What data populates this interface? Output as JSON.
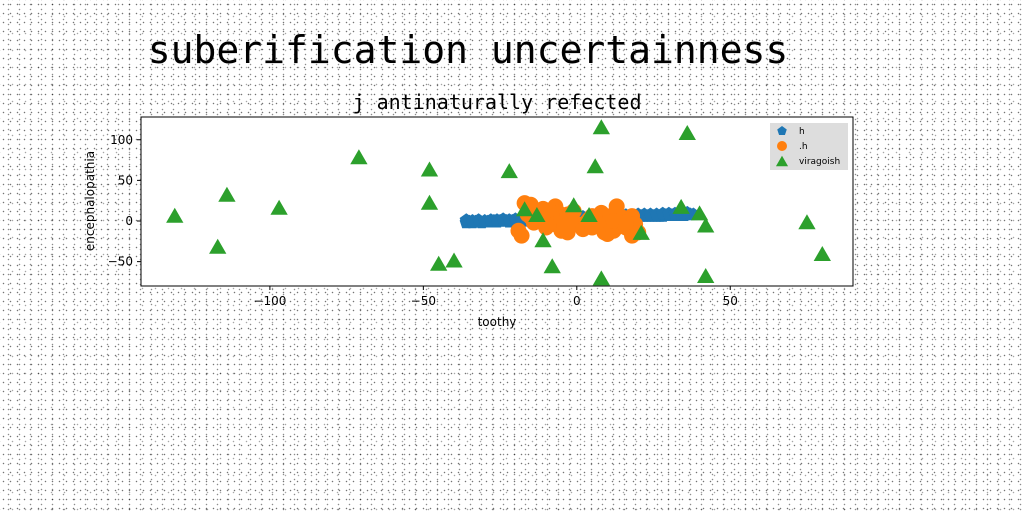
{
  "chart_data": {
    "type": "scatter",
    "suptitle": "suberification uncertainness",
    "title": "j antinaturally refected",
    "xlabel": "toothy",
    "ylabel": "encephalopathia",
    "xlim": [
      -142,
      90
    ],
    "ylim": [
      -80,
      128
    ],
    "xticks": [
      -100,
      -50,
      0,
      50
    ],
    "yticks": [
      -50,
      0,
      50,
      100
    ],
    "tick_labels_x": [
      "−100",
      "−50",
      "0",
      "50"
    ],
    "tick_labels_y": [
      "−50",
      "0",
      "50",
      "100"
    ],
    "legend_position": "top-right",
    "series": [
      {
        "name": "h",
        "marker": "pentagon",
        "color": "#1f77b4",
        "points": [
          [
            -36,
            -2
          ],
          [
            -35,
            -1
          ],
          [
            -34,
            -2
          ],
          [
            -33,
            -1
          ],
          [
            -32,
            -1
          ],
          [
            -31,
            -2
          ],
          [
            -30,
            -1
          ],
          [
            -29,
            -1
          ],
          [
            -28,
            -1
          ],
          [
            -27,
            0
          ],
          [
            -26,
            -1
          ],
          [
            -25,
            0
          ],
          [
            -24,
            0
          ],
          [
            -23,
            0
          ],
          [
            -22,
            -1
          ],
          [
            -21,
            0
          ],
          [
            -20,
            0
          ],
          [
            -19,
            0
          ],
          [
            -18,
            0
          ],
          [
            -17,
            1
          ],
          [
            -16,
            0
          ],
          [
            -15,
            1
          ],
          [
            -14,
            1
          ],
          [
            -13,
            0
          ],
          [
            -12,
            1
          ],
          [
            -11,
            1
          ],
          [
            -10,
            1
          ],
          [
            -9,
            1
          ],
          [
            -8,
            2
          ],
          [
            -7,
            1
          ],
          [
            -6,
            2
          ],
          [
            -5,
            2
          ],
          [
            -4,
            2
          ],
          [
            -3,
            2
          ],
          [
            -2,
            2
          ],
          [
            -1,
            3
          ],
          [
            0,
            3
          ],
          [
            1,
            3
          ],
          [
            2,
            3
          ],
          [
            3,
            3
          ],
          [
            4,
            3
          ],
          [
            5,
            3
          ],
          [
            6,
            3
          ],
          [
            7,
            4
          ],
          [
            8,
            4
          ],
          [
            9,
            4
          ],
          [
            10,
            4
          ],
          [
            11,
            4
          ],
          [
            12,
            4
          ],
          [
            13,
            4
          ],
          [
            14,
            5
          ],
          [
            15,
            5
          ],
          [
            16,
            5
          ],
          [
            17,
            5
          ],
          [
            18,
            5
          ],
          [
            19,
            5
          ],
          [
            20,
            5
          ],
          [
            21,
            6
          ],
          [
            22,
            6
          ],
          [
            23,
            6
          ],
          [
            24,
            6
          ],
          [
            25,
            6
          ],
          [
            26,
            6
          ],
          [
            27,
            6
          ],
          [
            28,
            6
          ],
          [
            29,
            7
          ],
          [
            30,
            7
          ],
          [
            31,
            7
          ],
          [
            32,
            7
          ],
          [
            33,
            7
          ],
          [
            34,
            7
          ],
          [
            35,
            7
          ],
          [
            36,
            8
          ],
          [
            37,
            8
          ],
          [
            38,
            8
          ],
          [
            -36,
            1
          ],
          [
            -34,
            0
          ],
          [
            -32,
            1
          ],
          [
            -30,
            0
          ],
          [
            -28,
            1
          ],
          [
            -26,
            1
          ],
          [
            -24,
            2
          ],
          [
            -22,
            1
          ],
          [
            -20,
            2
          ],
          [
            -18,
            2
          ],
          [
            -16,
            2
          ],
          [
            -14,
            3
          ],
          [
            -12,
            3
          ],
          [
            -10,
            3
          ],
          [
            -8,
            4
          ],
          [
            -6,
            4
          ],
          [
            -4,
            4
          ],
          [
            -2,
            5
          ],
          [
            0,
            5
          ],
          [
            2,
            5
          ],
          [
            4,
            5
          ],
          [
            6,
            6
          ],
          [
            8,
            6
          ],
          [
            10,
            6
          ],
          [
            12,
            6
          ],
          [
            14,
            7
          ],
          [
            16,
            7
          ],
          [
            18,
            7
          ],
          [
            20,
            8
          ],
          [
            22,
            8
          ],
          [
            24,
            8
          ],
          [
            26,
            8
          ],
          [
            28,
            9
          ],
          [
            30,
            9
          ],
          [
            32,
            9
          ],
          [
            34,
            9
          ],
          [
            36,
            10
          ]
        ]
      },
      {
        "name": ".h",
        "marker": "circle",
        "color": "#ff7f0e",
        "points": [
          [
            -18,
            -18
          ],
          [
            -17,
            22
          ],
          [
            -16,
            8
          ],
          [
            -15,
            5
          ],
          [
            -14,
            -2
          ],
          [
            -13,
            12
          ],
          [
            -12,
            0
          ],
          [
            -11,
            15
          ],
          [
            -10,
            -8
          ],
          [
            -9,
            6
          ],
          [
            -8,
            14
          ],
          [
            -7,
            -4
          ],
          [
            -7,
            18
          ],
          [
            -6,
            10
          ],
          [
            -5,
            -12
          ],
          [
            -5,
            4
          ],
          [
            -4,
            -6
          ],
          [
            -3,
            8
          ],
          [
            -3,
            -14
          ],
          [
            -2,
            2
          ],
          [
            -1,
            12
          ],
          [
            0,
            -4
          ],
          [
            2,
            -10
          ],
          [
            3,
            -2
          ],
          [
            4,
            2
          ],
          [
            5,
            -8
          ],
          [
            6,
            4
          ],
          [
            7,
            -4
          ],
          [
            8,
            10
          ],
          [
            9,
            -14
          ],
          [
            10,
            -2
          ],
          [
            10,
            -16
          ],
          [
            11,
            6
          ],
          [
            12,
            -12
          ],
          [
            13,
            18
          ],
          [
            14,
            -6
          ],
          [
            15,
            4
          ],
          [
            16,
            -8
          ],
          [
            17,
            -10
          ],
          [
            18,
            -18
          ],
          [
            18,
            6
          ],
          [
            19,
            -4
          ],
          [
            20,
            -14
          ],
          [
            -19,
            -12
          ],
          [
            -15,
            20
          ],
          [
            5,
            6
          ],
          [
            12,
            0
          ],
          [
            16,
            -2
          ]
        ]
      },
      {
        "name": "viragoish",
        "marker": "triangle",
        "color": "#2ca02c",
        "points": [
          [
            -131,
            7
          ],
          [
            -117,
            -31
          ],
          [
            -114,
            33
          ],
          [
            -97,
            17
          ],
          [
            -71,
            79
          ],
          [
            -48,
            64
          ],
          [
            -48,
            23
          ],
          [
            -45,
            -52
          ],
          [
            -40,
            -48
          ],
          [
            -22,
            62
          ],
          [
            -17,
            15
          ],
          [
            -13,
            8
          ],
          [
            -11,
            -23
          ],
          [
            -8,
            -55
          ],
          [
            -1,
            20
          ],
          [
            4,
            8
          ],
          [
            6,
            68
          ],
          [
            8,
            116
          ],
          [
            8,
            -70
          ],
          [
            21,
            -14
          ],
          [
            34,
            18
          ],
          [
            36,
            109
          ],
          [
            40,
            10
          ],
          [
            42,
            -5
          ],
          [
            42,
            -67
          ],
          [
            75,
            -1
          ],
          [
            80,
            -40
          ]
        ]
      }
    ]
  }
}
